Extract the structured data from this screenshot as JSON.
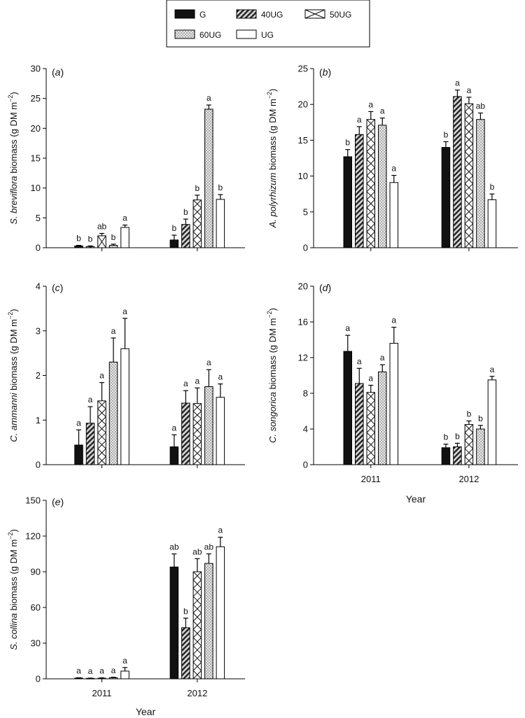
{
  "legend": {
    "items": [
      {
        "label": "G",
        "pattern": "solid"
      },
      {
        "label": "40UG",
        "pattern": "diag"
      },
      {
        "label": "50UG",
        "pattern": "cross"
      },
      {
        "label": "60UG",
        "pattern": "dots"
      },
      {
        "label": "UG",
        "pattern": "white"
      }
    ]
  },
  "chart_data": [
    {
      "type": "bar",
      "panel_label": "(a)",
      "ylabel_italic": "S. breviflora",
      "ylabel_rest": " biomass (g DM m",
      "ylabel_sup": "−2",
      "ylabel_close": ")",
      "xlabel": "",
      "show_xticklabels": false,
      "ylim": [
        0,
        30
      ],
      "yticks": [
        "0",
        "5",
        "10",
        "15",
        "20",
        "25",
        "30"
      ],
      "categories": [
        "2011",
        "2012"
      ],
      "series": [
        {
          "name": "G",
          "values": [
            0.3,
            1.3
          ],
          "errors": [
            0.1,
            0.8
          ],
          "letters": [
            "b",
            "b"
          ]
        },
        {
          "name": "40UG",
          "values": [
            0.2,
            3.9
          ],
          "errors": [
            0.1,
            0.9
          ],
          "letters": [
            "b",
            "b"
          ]
        },
        {
          "name": "50UG",
          "values": [
            2.0,
            8.0
          ],
          "errors": [
            0.4,
            0.8
          ],
          "letters": [
            "ab",
            "b"
          ]
        },
        {
          "name": "60UG",
          "values": [
            0.4,
            23.2
          ],
          "errors": [
            0.2,
            0.7
          ],
          "letters": [
            "b",
            "a"
          ]
        },
        {
          "name": "UG",
          "values": [
            3.4,
            8.1
          ],
          "errors": [
            0.4,
            0.8
          ],
          "letters": [
            "a",
            "b"
          ]
        }
      ]
    },
    {
      "type": "bar",
      "panel_label": "(b)",
      "ylabel_italic": "A. polyrhizum",
      "ylabel_rest": "  biomass (g DM m",
      "ylabel_sup": "−2",
      "ylabel_close": ")",
      "xlabel": "",
      "show_xticklabels": false,
      "ylim": [
        0,
        25
      ],
      "yticks": [
        "0",
        "5",
        "10",
        "15",
        "20",
        "25"
      ],
      "categories": [
        "2011",
        "2012"
      ],
      "series": [
        {
          "name": "G",
          "values": [
            12.7,
            14.0
          ],
          "errors": [
            1.0,
            0.8
          ],
          "letters": [
            "b",
            "b"
          ]
        },
        {
          "name": "40UG",
          "values": [
            15.8,
            21.1
          ],
          "errors": [
            1.1,
            0.9
          ],
          "letters": [
            "a",
            "a"
          ]
        },
        {
          "name": "50UG",
          "values": [
            17.9,
            20.1
          ],
          "errors": [
            1.1,
            0.9
          ],
          "letters": [
            "a",
            "a"
          ]
        },
        {
          "name": "60UG",
          "values": [
            17.1,
            17.9
          ],
          "errors": [
            1.0,
            0.9
          ],
          "letters": [
            "a",
            "ab"
          ]
        },
        {
          "name": "UG",
          "values": [
            9.1,
            6.7
          ],
          "errors": [
            1.0,
            0.8
          ],
          "letters": [
            "a",
            "b"
          ]
        }
      ]
    },
    {
      "type": "bar",
      "panel_label": "(c)",
      "ylabel_italic": "C. ammanni",
      "ylabel_rest": " biomass (g DM m",
      "ylabel_sup": "−2",
      "ylabel_close": ")",
      "xlabel": "",
      "show_xticklabels": false,
      "ylim": [
        0,
        4
      ],
      "yticks": [
        "0",
        "1",
        "2",
        "3",
        "4"
      ],
      "categories": [
        "2011",
        "2012"
      ],
      "series": [
        {
          "name": "G",
          "values": [
            0.44,
            0.4
          ],
          "errors": [
            0.34,
            0.27
          ],
          "letters": [
            "a",
            "a"
          ]
        },
        {
          "name": "40UG",
          "values": [
            0.93,
            1.38
          ],
          "errors": [
            0.37,
            0.28
          ],
          "letters": [
            "a",
            "a"
          ]
        },
        {
          "name": "50UG",
          "values": [
            1.43,
            1.37
          ],
          "errors": [
            0.41,
            0.35
          ],
          "letters": [
            "a",
            "a"
          ]
        },
        {
          "name": "60UG",
          "values": [
            2.3,
            1.75
          ],
          "errors": [
            0.54,
            0.38
          ],
          "letters": [
            "a",
            "a"
          ]
        },
        {
          "name": "UG",
          "values": [
            2.6,
            1.51
          ],
          "errors": [
            0.68,
            0.3
          ],
          "letters": [
            "a",
            "a"
          ]
        }
      ]
    },
    {
      "type": "bar",
      "panel_label": "(d)",
      "ylabel_italic": "C. songorica",
      "ylabel_rest": " biomass (g DM m",
      "ylabel_sup": "−2",
      "ylabel_close": ")",
      "xlabel": "Year",
      "show_xticklabels": true,
      "ylim": [
        0,
        20
      ],
      "yticks": [
        "0",
        "4",
        "8",
        "12",
        "16",
        "20"
      ],
      "categories": [
        "2011",
        "2012"
      ],
      "series": [
        {
          "name": "G",
          "values": [
            12.7,
            1.9
          ],
          "errors": [
            1.8,
            0.4
          ],
          "letters": [
            "a",
            "b"
          ]
        },
        {
          "name": "40UG",
          "values": [
            9.1,
            2.0
          ],
          "errors": [
            1.7,
            0.4
          ],
          "letters": [
            "a",
            "b"
          ]
        },
        {
          "name": "50UG",
          "values": [
            8.1,
            4.5
          ],
          "errors": [
            0.8,
            0.4
          ],
          "letters": [
            "a",
            "b"
          ]
        },
        {
          "name": "60UG",
          "values": [
            10.4,
            4.0
          ],
          "errors": [
            0.8,
            0.4
          ],
          "letters": [
            "a",
            "b"
          ]
        },
        {
          "name": "UG",
          "values": [
            13.6,
            9.5
          ],
          "errors": [
            1.8,
            0.4
          ],
          "letters": [
            "a",
            "a"
          ]
        }
      ]
    },
    {
      "type": "bar",
      "panel_label": "(e)",
      "ylabel_italic": "S. collina",
      "ylabel_rest": " biomass (g DM m",
      "ylabel_sup": "−2",
      "ylabel_close": ")",
      "xlabel": "Year",
      "show_xticklabels": true,
      "ylim": [
        0,
        150
      ],
      "yticks": [
        "0",
        "30",
        "60",
        "90",
        "120",
        "150"
      ],
      "categories": [
        "2011",
        "2012"
      ],
      "series": [
        {
          "name": "G",
          "values": [
            0.6,
            94.0
          ],
          "errors": [
            0.3,
            11.0
          ],
          "letters": [
            "a",
            "ab"
          ]
        },
        {
          "name": "40UG",
          "values": [
            0.4,
            43.0
          ],
          "errors": [
            0.2,
            8.0
          ],
          "letters": [
            "a",
            "b"
          ]
        },
        {
          "name": "50UG",
          "values": [
            0.5,
            90.0
          ],
          "errors": [
            0.3,
            11.0
          ],
          "letters": [
            "a",
            "ab"
          ]
        },
        {
          "name": "60UG",
          "values": [
            0.9,
            97.0
          ],
          "errors": [
            0.4,
            8.0
          ],
          "letters": [
            "a",
            "ab"
          ]
        },
        {
          "name": "UG",
          "values": [
            6.5,
            111.0
          ],
          "errors": [
            3.0,
            8.0
          ],
          "letters": [
            "a",
            "a"
          ]
        }
      ]
    }
  ]
}
